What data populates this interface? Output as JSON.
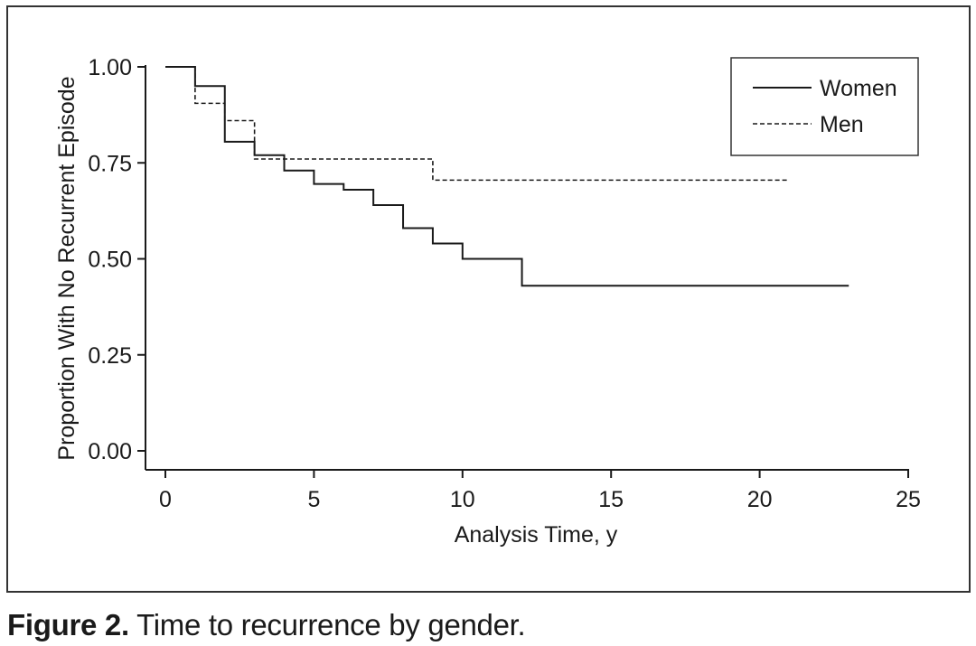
{
  "caption": {
    "label": "Figure 2.",
    "text": " Time to recurrence by gender."
  },
  "chart_data": {
    "type": "line",
    "subtype": "step",
    "title": "",
    "xlabel": "Analysis Time, y",
    "ylabel": "Proportion With No Recurrent Episode",
    "xlim": [
      0,
      25
    ],
    "ylim": [
      0,
      1
    ],
    "x_ticks": [
      0,
      5,
      10,
      15,
      20,
      25
    ],
    "x_tick_labels": [
      "0",
      "5",
      "10",
      "15",
      "20",
      "25"
    ],
    "y_ticks": [
      0,
      0.25,
      0.5,
      0.75,
      1.0
    ],
    "y_tick_labels": [
      "0.00",
      "0.25",
      "0.50",
      "0.75",
      "1.00"
    ],
    "grid": false,
    "legend_position": "top-right",
    "series": [
      {
        "name": "Women",
        "line_style": "solid",
        "color": "#1a1a1a",
        "x": [
          0,
          1,
          2,
          3,
          4,
          5,
          6,
          7,
          8,
          9,
          10,
          12,
          23
        ],
        "y": [
          1.0,
          0.95,
          0.805,
          0.77,
          0.73,
          0.695,
          0.68,
          0.64,
          0.58,
          0.54,
          0.5,
          0.43,
          0.43
        ]
      },
      {
        "name": "Men",
        "line_style": "dashed",
        "color": "#1a1a1a",
        "x": [
          0,
          1,
          2,
          3,
          9,
          21
        ],
        "y": [
          1.0,
          0.905,
          0.86,
          0.76,
          0.705,
          0.705
        ]
      }
    ]
  }
}
